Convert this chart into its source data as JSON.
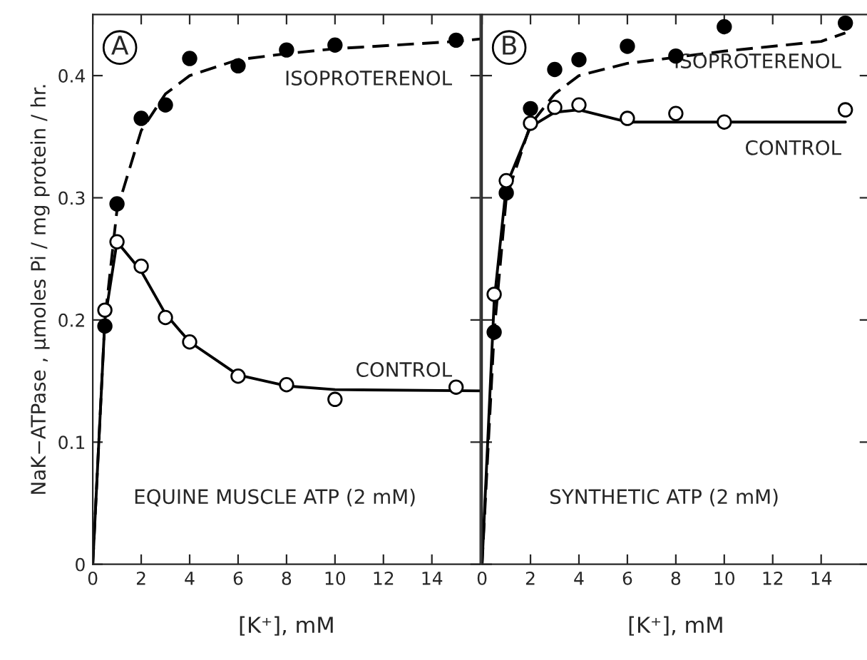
{
  "chart_data": [
    {
      "type": "scatter",
      "xlabel": "[K⁺], mM",
      "ylabel": "NaK−ATPase , μmoles Pi / mg protein / hr.",
      "xlim": [
        0,
        16
      ],
      "xticks": [
        0,
        2,
        4,
        6,
        8,
        10,
        12,
        14
      ],
      "ylim": [
        0,
        0.45
      ],
      "yticks": [
        0,
        0.1,
        0.2,
        0.3,
        0.4
      ],
      "grid": false,
      "legend": false,
      "tick_labels": "xy",
      "series": [
        {
          "type": "line",
          "line_style": "dashed",
          "marker": "none",
          "color": "#000000",
          "x": [
            0,
            0.5,
            1,
            2,
            3,
            4,
            6,
            8,
            10,
            15,
            16
          ],
          "values": [
            0,
            0.2,
            0.29,
            0.355,
            0.385,
            0.4,
            0.413,
            0.418,
            0.422,
            0.428,
            0.43
          ]
        },
        {
          "type": "line",
          "line_style": "solid",
          "marker": "none",
          "color": "#000000",
          "x": [
            0,
            0.5,
            1,
            2,
            3,
            4,
            6,
            8,
            10,
            16
          ],
          "values": [
            0,
            0.2,
            0.264,
            0.24,
            0.205,
            0.182,
            0.155,
            0.146,
            0.143,
            0.142
          ]
        },
        {
          "name": "ISOPROTERENOL",
          "marker": "circle",
          "color": "#000000",
          "x": [
            0.5,
            1,
            2,
            3,
            4,
            6,
            8,
            10,
            15
          ],
          "values": [
            0.195,
            0.295,
            0.365,
            0.376,
            0.414,
            0.408,
            0.421,
            0.425,
            0.429
          ]
        },
        {
          "name": "CONTROL",
          "marker": "circle",
          "color": "#ffffff",
          "x": [
            0.5,
            1,
            2,
            3,
            4,
            6,
            8,
            10,
            15
          ],
          "values": [
            0.208,
            0.264,
            0.244,
            0.202,
            0.182,
            0.154,
            0.147,
            0.135,
            0.145
          ]
        }
      ],
      "annotations": [
        "A",
        "EQUINE MUSCLE ATP (2 mM)"
      ]
    },
    {
      "type": "scatter",
      "xlabel": "[K⁺], mM",
      "xlim": [
        0,
        16
      ],
      "xticks": [
        0,
        2,
        4,
        6,
        8,
        10,
        12,
        14
      ],
      "ylim": [
        0,
        0.45
      ],
      "yticks": [
        0,
        0.1,
        0.2,
        0.3,
        0.4
      ],
      "grid": false,
      "legend": false,
      "tick_labels": "x",
      "series": [
        {
          "type": "line",
          "line_style": "dashed",
          "marker": "none",
          "color": "#000000",
          "x": [
            0,
            0.5,
            1,
            2,
            3,
            4,
            6,
            8,
            10,
            14,
            15
          ],
          "values": [
            0,
            0.19,
            0.3,
            0.36,
            0.385,
            0.4,
            0.41,
            0.415,
            0.42,
            0.428,
            0.435
          ]
        },
        {
          "type": "line",
          "line_style": "solid",
          "marker": "none",
          "color": "#000000",
          "x": [
            0,
            0.5,
            1,
            2,
            3,
            4,
            6,
            8,
            10,
            15
          ],
          "values": [
            0,
            0.215,
            0.31,
            0.358,
            0.37,
            0.372,
            0.362,
            0.362,
            0.362,
            0.362
          ]
        },
        {
          "name": "ISOPROTERENOL",
          "marker": "circle",
          "color": "#000000",
          "x": [
            0.5,
            1,
            2,
            3,
            4,
            6,
            8,
            10,
            15
          ],
          "values": [
            0.19,
            0.304,
            0.373,
            0.405,
            0.413,
            0.424,
            0.416,
            0.44,
            0.443
          ]
        },
        {
          "name": "CONTROL",
          "marker": "circle",
          "color": "#ffffff",
          "x": [
            0.5,
            1,
            2,
            3,
            4,
            6,
            8,
            10,
            15
          ],
          "values": [
            0.221,
            0.314,
            0.361,
            0.374,
            0.376,
            0.365,
            0.369,
            0.362,
            0.372
          ]
        }
      ],
      "annotations": [
        "B",
        "SYNTHETIC ATP (2 mM)"
      ]
    }
  ]
}
